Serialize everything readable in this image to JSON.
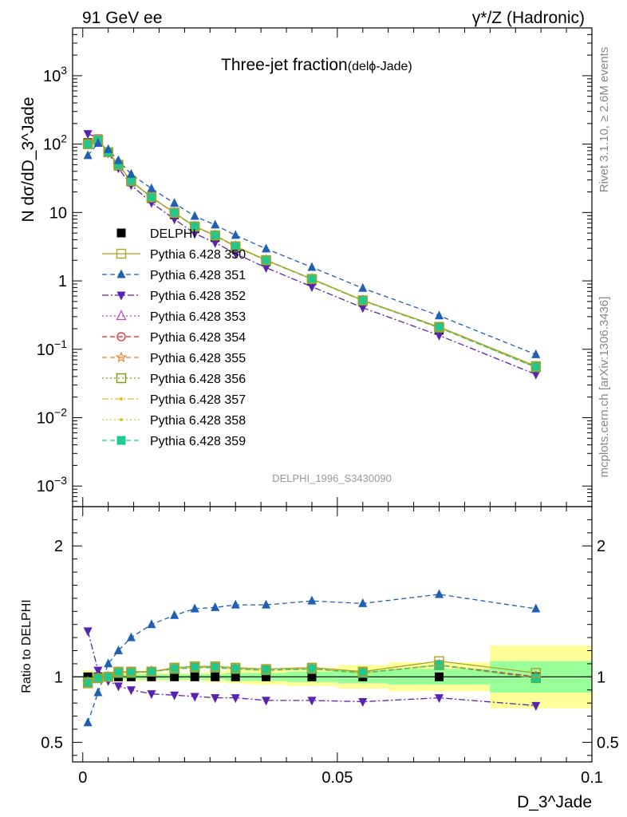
{
  "header": {
    "left": "91 GeV ee",
    "right": "γ*/Z (Hadronic)",
    "title_main": "Three-jet fraction",
    "title_sub": "(delϕ-Jade)",
    "side_top": "Rivet 3.1.10, ≥ 2.6M events",
    "side_bottom": "mcplots.cern.ch [arXiv:1306.3436]",
    "analysis": "DELPHI_1996_S3430090"
  },
  "axes": {
    "xlabel": "D_3^Jade",
    "ylabel_top": "N dσ/dD_3^Jade",
    "ylabel_bottom": "Ratio to DELPHI",
    "xlim": [
      -0.002,
      0.1
    ],
    "ylim_top": [
      0.0005,
      5000
    ],
    "ylim_bottom": [
      0.35,
      2.3
    ],
    "yscale_top": "log",
    "x_ticks": [
      "0",
      "0.05",
      "0.1"
    ],
    "top_ticks": [
      {
        "v": 1000,
        "base": "10",
        "exp": "3"
      },
      {
        "v": 100,
        "base": "10",
        "exp": "2"
      },
      {
        "v": 10,
        "base": "10",
        "exp": ""
      },
      {
        "v": 1,
        "base": "1",
        "exp": ""
      },
      {
        "v": 0.1,
        "base": "10",
        "exp": "−1"
      },
      {
        "v": 0.01,
        "base": "10",
        "exp": "−2"
      },
      {
        "v": 0.001,
        "base": "10",
        "exp": "−3"
      }
    ],
    "ratio_ticks": [
      "0.5",
      "1",
      "2"
    ]
  },
  "legend": [
    {
      "label": "DELPHI",
      "color": "#000000",
      "marker": "square-filled",
      "dash": "none"
    },
    {
      "label": "Pythia 6.428 350",
      "color": "#a8a228",
      "marker": "square-open",
      "dash": "solid"
    },
    {
      "label": "Pythia 6.428 351",
      "color": "#1f5fb4",
      "marker": "triangle-up-filled",
      "dash": "dashed"
    },
    {
      "label": "Pythia 6.428 352",
      "color": "#5a22b0",
      "marker": "triangle-down-filled",
      "dash": "dashdot"
    },
    {
      "label": "Pythia 6.428 353",
      "color": "#c040c0",
      "marker": "triangle-up-open",
      "dash": "dotted"
    },
    {
      "label": "Pythia 6.428 354",
      "color": "#e0202a",
      "marker": "circle-open",
      "dash": "dashed"
    },
    {
      "label": "Pythia 6.428 355",
      "color": "#f07a20",
      "marker": "star-open",
      "dash": "dashed"
    },
    {
      "label": "Pythia 6.428 356",
      "color": "#7a9a10",
      "marker": "square-open",
      "dash": "dotted"
    },
    {
      "label": "Pythia 6.428 357",
      "color": "#e8c020",
      "marker": "dot",
      "dash": "dashdot"
    },
    {
      "label": "Pythia 6.428 358",
      "color": "#c8d020",
      "marker": "dot",
      "dash": "dotted"
    },
    {
      "label": "Pythia 6.428 359",
      "color": "#20c890",
      "marker": "square-filled",
      "dash": "dashed"
    }
  ],
  "chart_data": {
    "type": "line",
    "x": [
      0.001,
      0.003,
      0.005,
      0.007,
      0.0095,
      0.0135,
      0.018,
      0.022,
      0.026,
      0.03,
      0.036,
      0.045,
      0.055,
      0.07,
      0.089
    ],
    "data_values": [
      105,
      117,
      76,
      48,
      28,
      16,
      9.3,
      5.8,
      4.3,
      3.0,
      1.9,
      1.0,
      0.5,
      0.19,
      0.055
    ],
    "ratio_band": {
      "x_edges": [
        0,
        0.002,
        0.004,
        0.006,
        0.008,
        0.011,
        0.016,
        0.02,
        0.024,
        0.028,
        0.032,
        0.04,
        0.05,
        0.06,
        0.08,
        0.1
      ],
      "green_half": [
        0.03,
        0.02,
        0.02,
        0.02,
        0.02,
        0.02,
        0.02,
        0.02,
        0.02,
        0.03,
        0.03,
        0.04,
        0.05,
        0.06,
        0.12
      ],
      "yellow_half": [
        0.05,
        0.03,
        0.03,
        0.03,
        0.03,
        0.03,
        0.03,
        0.03,
        0.04,
        0.05,
        0.06,
        0.07,
        0.09,
        0.11,
        0.24
      ]
    },
    "series": [
      {
        "ratio": [
          0.95,
          0.99,
          1.0,
          1.04,
          1.04,
          1.04,
          1.07,
          1.08,
          1.08,
          1.07,
          1.06,
          1.07,
          1.04,
          1.12,
          1.03
        ]
      },
      {
        "ratio": [
          0.65,
          0.88,
          1.1,
          1.2,
          1.3,
          1.4,
          1.47,
          1.52,
          1.53,
          1.55,
          1.55,
          1.58,
          1.56,
          1.63,
          1.52
        ]
      },
      {
        "ratio": [
          1.35,
          1.05,
          0.97,
          0.93,
          0.9,
          0.87,
          0.86,
          0.85,
          0.84,
          0.84,
          0.82,
          0.82,
          0.81,
          0.84,
          0.78
        ]
      },
      {
        "ratio": [
          0.96,
          0.99,
          1.0,
          1.03,
          1.03,
          1.04,
          1.06,
          1.07,
          1.07,
          1.06,
          1.05,
          1.06,
          1.03,
          1.09,
          1.0
        ]
      },
      {
        "ratio": [
          0.96,
          0.99,
          1.0,
          1.03,
          1.03,
          1.04,
          1.06,
          1.07,
          1.07,
          1.06,
          1.05,
          1.06,
          1.03,
          1.09,
          1.0
        ]
      },
      {
        "ratio": [
          0.96,
          0.99,
          1.0,
          1.03,
          1.03,
          1.04,
          1.06,
          1.07,
          1.07,
          1.06,
          1.05,
          1.06,
          1.03,
          1.09,
          0.99
        ]
      },
      {
        "ratio": [
          0.96,
          0.99,
          1.0,
          1.03,
          1.03,
          1.04,
          1.06,
          1.07,
          1.07,
          1.06,
          1.05,
          1.06,
          1.03,
          1.09,
          0.99
        ]
      },
      {
        "ratio": [
          0.96,
          0.99,
          1.0,
          1.03,
          1.03,
          1.04,
          1.06,
          1.07,
          1.07,
          1.06,
          1.05,
          1.06,
          1.03,
          1.09,
          0.99
        ]
      },
      {
        "ratio": [
          0.96,
          0.99,
          1.0,
          1.03,
          1.03,
          1.04,
          1.06,
          1.07,
          1.07,
          1.06,
          1.05,
          1.06,
          1.03,
          1.09,
          0.99
        ]
      },
      {
        "ratio": [
          0.96,
          0.99,
          1.0,
          1.03,
          1.03,
          1.04,
          1.06,
          1.07,
          1.07,
          1.06,
          1.05,
          1.06,
          1.03,
          1.09,
          0.99
        ]
      }
    ]
  }
}
